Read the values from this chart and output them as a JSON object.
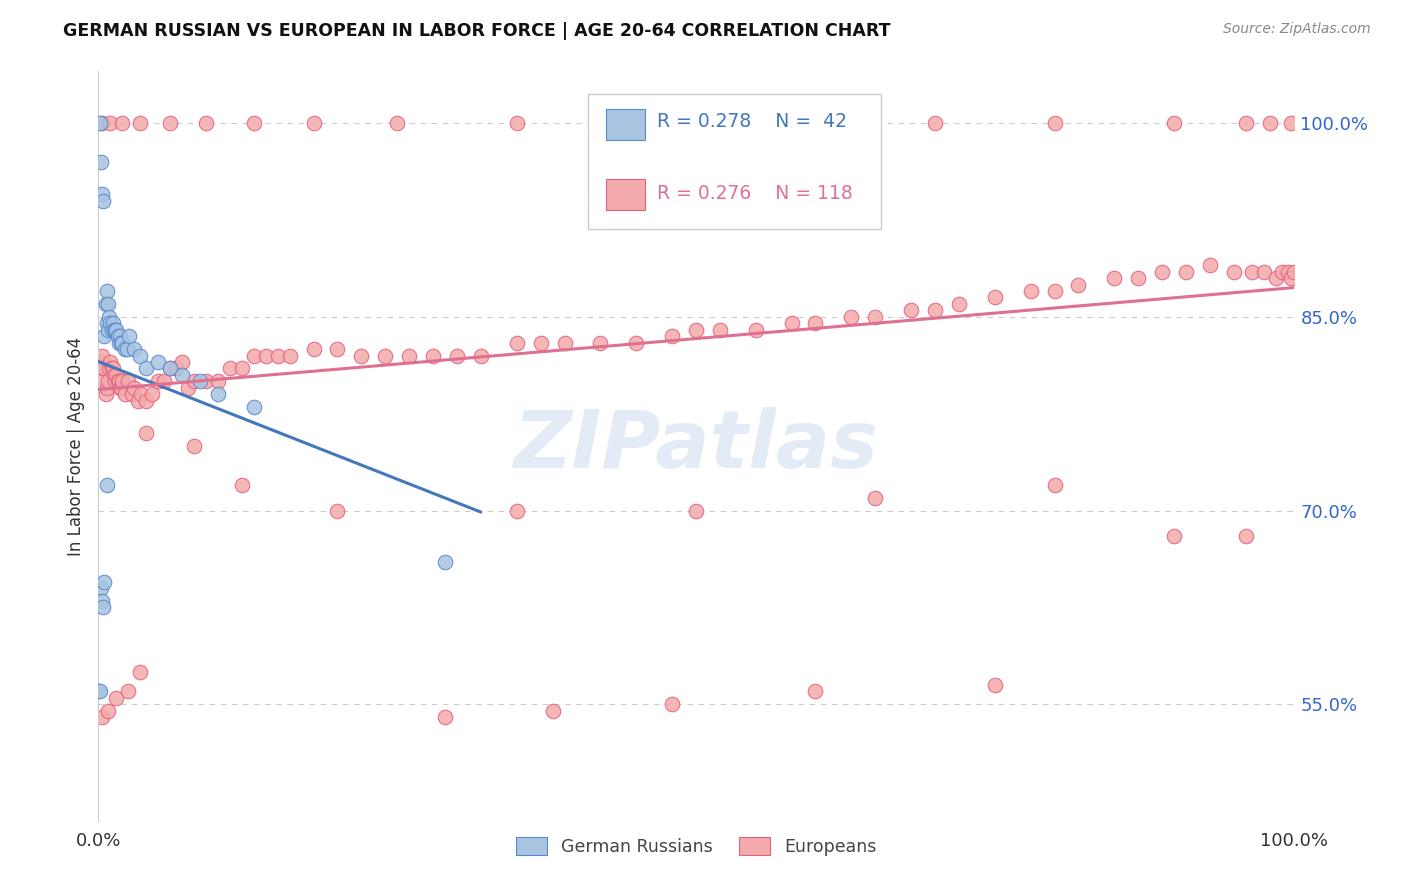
{
  "title": "GERMAN RUSSIAN VS EUROPEAN IN LABOR FORCE | AGE 20-64 CORRELATION CHART",
  "source": "Source: ZipAtlas.com",
  "ylabel": "In Labor Force | Age 20-64",
  "xlim": [
    0.0,
    1.0
  ],
  "ylim": [
    0.46,
    1.04
  ],
  "y_ticks": [
    0.55,
    0.7,
    0.85,
    1.0
  ],
  "y_tick_labels": [
    "55.0%",
    "70.0%",
    "85.0%",
    "100.0%"
  ],
  "watermark": "ZIPatlas",
  "legend_blue_label": "German Russians",
  "legend_pink_label": "Europeans",
  "R_blue": 0.278,
  "N_blue": 42,
  "R_pink": 0.276,
  "N_pink": 118,
  "blue_color": "#A8C4E0",
  "pink_color": "#F4AAAA",
  "blue_edge_color": "#5588CC",
  "pink_edge_color": "#E06080",
  "blue_line_color": "#4477BB",
  "pink_line_color": "#E07090",
  "blue_x": [
    0.001,
    0.002,
    0.003,
    0.004,
    0.005,
    0.006,
    0.007,
    0.007,
    0.008,
    0.008,
    0.009,
    0.01,
    0.011,
    0.012,
    0.013,
    0.014,
    0.015,
    0.016,
    0.017,
    0.018,
    0.019,
    0.02,
    0.022,
    0.024,
    0.026,
    0.03,
    0.035,
    0.04,
    0.05,
    0.06,
    0.07,
    0.085,
    0.1,
    0.13,
    0.0,
    0.001,
    0.002,
    0.003,
    0.004,
    0.005,
    0.29,
    0.007
  ],
  "blue_y": [
    1.0,
    0.97,
    0.945,
    0.94,
    0.835,
    0.86,
    0.87,
    0.845,
    0.86,
    0.84,
    0.85,
    0.845,
    0.84,
    0.845,
    0.84,
    0.84,
    0.84,
    0.835,
    0.83,
    0.835,
    0.83,
    0.83,
    0.825,
    0.825,
    0.835,
    0.825,
    0.82,
    0.81,
    0.815,
    0.81,
    0.805,
    0.8,
    0.79,
    0.78,
    0.56,
    0.56,
    0.64,
    0.63,
    0.625,
    0.645,
    0.66,
    0.72
  ],
  "pink_x": [
    0.001,
    0.002,
    0.003,
    0.004,
    0.005,
    0.006,
    0.007,
    0.008,
    0.009,
    0.01,
    0.011,
    0.012,
    0.013,
    0.014,
    0.015,
    0.016,
    0.017,
    0.018,
    0.019,
    0.02,
    0.022,
    0.025,
    0.028,
    0.03,
    0.033,
    0.036,
    0.04,
    0.045,
    0.05,
    0.055,
    0.06,
    0.065,
    0.07,
    0.075,
    0.08,
    0.09,
    0.1,
    0.11,
    0.12,
    0.13,
    0.14,
    0.15,
    0.16,
    0.18,
    0.2,
    0.22,
    0.24,
    0.26,
    0.28,
    0.3,
    0.32,
    0.35,
    0.37,
    0.39,
    0.42,
    0.45,
    0.48,
    0.5,
    0.52,
    0.55,
    0.58,
    0.6,
    0.63,
    0.65,
    0.68,
    0.7,
    0.72,
    0.75,
    0.78,
    0.8,
    0.82,
    0.85,
    0.87,
    0.89,
    0.91,
    0.93,
    0.95,
    0.965,
    0.975,
    0.985,
    0.99,
    0.995,
    0.998,
    1.0,
    0.003,
    0.008,
    0.015,
    0.025,
    0.035,
    0.29,
    0.38,
    0.48,
    0.6,
    0.75,
    0.04,
    0.08,
    0.12,
    0.2,
    0.35,
    0.5,
    0.65,
    0.8,
    0.9,
    0.96,
    0.003,
    0.01,
    0.02,
    0.035,
    0.06,
    0.09,
    0.13,
    0.18,
    0.25,
    0.35,
    0.48,
    0.6,
    0.7,
    0.8,
    0.9,
    0.96,
    0.98,
    0.998
  ],
  "pink_y": [
    0.8,
    0.815,
    0.82,
    0.81,
    0.81,
    0.79,
    0.795,
    0.8,
    0.81,
    0.815,
    0.81,
    0.81,
    0.805,
    0.8,
    0.805,
    0.8,
    0.8,
    0.795,
    0.795,
    0.8,
    0.79,
    0.8,
    0.79,
    0.795,
    0.785,
    0.79,
    0.785,
    0.79,
    0.8,
    0.8,
    0.81,
    0.81,
    0.815,
    0.795,
    0.8,
    0.8,
    0.8,
    0.81,
    0.81,
    0.82,
    0.82,
    0.82,
    0.82,
    0.825,
    0.825,
    0.82,
    0.82,
    0.82,
    0.82,
    0.82,
    0.82,
    0.83,
    0.83,
    0.83,
    0.83,
    0.83,
    0.835,
    0.84,
    0.84,
    0.84,
    0.845,
    0.845,
    0.85,
    0.85,
    0.855,
    0.855,
    0.86,
    0.865,
    0.87,
    0.87,
    0.875,
    0.88,
    0.88,
    0.885,
    0.885,
    0.89,
    0.885,
    0.885,
    0.885,
    0.88,
    0.885,
    0.885,
    0.88,
    0.885,
    0.54,
    0.545,
    0.555,
    0.56,
    0.575,
    0.54,
    0.545,
    0.55,
    0.56,
    0.565,
    0.76,
    0.75,
    0.72,
    0.7,
    0.7,
    0.7,
    0.71,
    0.72,
    0.68,
    0.68,
    1.0,
    1.0,
    1.0,
    1.0,
    1.0,
    1.0,
    1.0,
    1.0,
    1.0,
    1.0,
    1.0,
    1.0,
    1.0,
    1.0,
    1.0,
    1.0,
    1.0,
    1.0
  ]
}
